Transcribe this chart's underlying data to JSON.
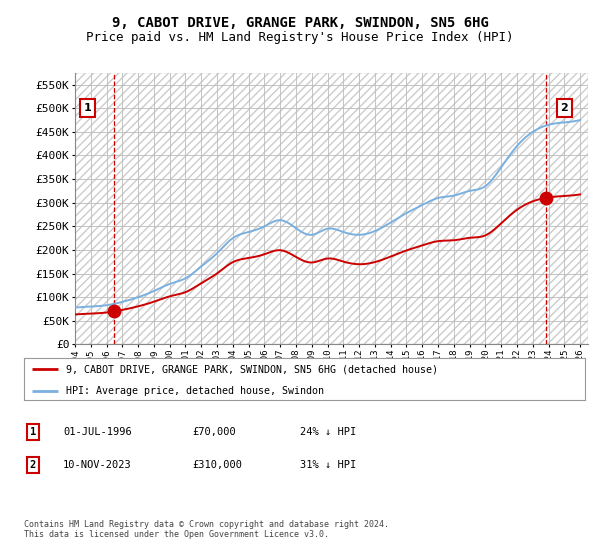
{
  "title": "9, CABOT DRIVE, GRANGE PARK, SWINDON, SN5 6HG",
  "subtitle": "Price paid vs. HM Land Registry's House Price Index (HPI)",
  "ylim": [
    0,
    575000
  ],
  "yticks": [
    0,
    50000,
    100000,
    150000,
    200000,
    250000,
    300000,
    350000,
    400000,
    450000,
    500000,
    550000
  ],
  "ytick_labels": [
    "£0",
    "£50K",
    "£100K",
    "£150K",
    "£200K",
    "£250K",
    "£300K",
    "£350K",
    "£400K",
    "£450K",
    "£500K",
    "£550K"
  ],
  "hpi_color": "#7ab0e0",
  "price_color": "#cc0000",
  "sale1_date": 1996.5,
  "sale1_price": 70000,
  "sale2_date": 2023.86,
  "sale2_price": 310000,
  "legend_entry1": "9, CABOT DRIVE, GRANGE PARK, SWINDON, SN5 6HG (detached house)",
  "legend_entry2": "HPI: Average price, detached house, Swindon",
  "table_row1": [
    "1",
    "01-JUL-1996",
    "£70,000",
    "24% ↓ HPI"
  ],
  "table_row2": [
    "2",
    "10-NOV-2023",
    "£310,000",
    "31% ↓ HPI"
  ],
  "footnote": "Contains HM Land Registry data © Crown copyright and database right 2024.\nThis data is licensed under the Open Government Licence v3.0.",
  "background_color": "#ffffff",
  "grid_color": "#bbbbbb",
  "title_fontsize": 10,
  "subtitle_fontsize": 9,
  "hpi_years": [
    1994,
    1995,
    1996,
    1997,
    1998,
    1999,
    2000,
    2001,
    2002,
    2003,
    2004,
    2005,
    2006,
    2007,
    2008,
    2009,
    2010,
    2011,
    2012,
    2013,
    2014,
    2015,
    2016,
    2017,
    2018,
    2019,
    2020,
    2021,
    2022,
    2023,
    2024,
    2025,
    2026
  ],
  "hpi_vals": [
    78000,
    80000,
    83000,
    90000,
    100000,
    113000,
    128000,
    140000,
    165000,
    193000,
    225000,
    238000,
    250000,
    263000,
    246000,
    232000,
    245000,
    238000,
    232000,
    240000,
    258000,
    278000,
    295000,
    310000,
    315000,
    325000,
    335000,
    375000,
    420000,
    450000,
    465000,
    470000,
    475000
  ]
}
